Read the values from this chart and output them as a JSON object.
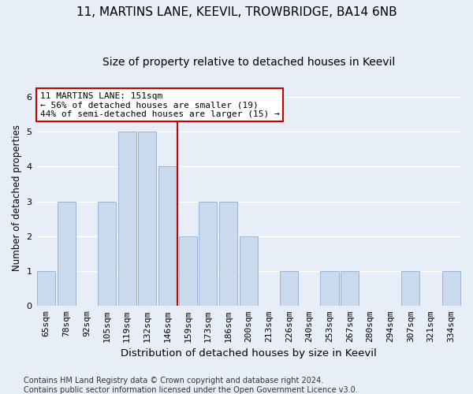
{
  "title": "11, MARTINS LANE, KEEVIL, TROWBRIDGE, BA14 6NB",
  "subtitle": "Size of property relative to detached houses in Keevil",
  "xlabel": "Distribution of detached houses by size in Keevil",
  "ylabel": "Number of detached properties",
  "categories": [
    "65sqm",
    "78sqm",
    "92sqm",
    "105sqm",
    "119sqm",
    "132sqm",
    "146sqm",
    "159sqm",
    "173sqm",
    "186sqm",
    "200sqm",
    "213sqm",
    "226sqm",
    "240sqm",
    "253sqm",
    "267sqm",
    "280sqm",
    "294sqm",
    "307sqm",
    "321sqm",
    "334sqm"
  ],
  "values": [
    1,
    3,
    0,
    3,
    5,
    5,
    4,
    2,
    3,
    3,
    2,
    0,
    1,
    0,
    1,
    1,
    0,
    0,
    1,
    0,
    1
  ],
  "bar_color": "#c9d9ee",
  "bar_edgecolor": "#9ab5d4",
  "vline_color": "#cc0000",
  "annotation_line1": "11 MARTINS LANE: 151sqm",
  "annotation_line2": "← 56% of detached houses are smaller (19)",
  "annotation_line3": "44% of semi-detached houses are larger (15) →",
  "annotation_box_color": "#ffffff",
  "annotation_box_edgecolor": "#cc0000",
  "ylim_max": 6.2,
  "yticks": [
    0,
    1,
    2,
    3,
    4,
    5,
    6
  ],
  "background_color": "#e8eef7",
  "grid_color": "#ffffff",
  "footer": "Contains HM Land Registry data © Crown copyright and database right 2024.\nContains public sector information licensed under the Open Government Licence v3.0.",
  "title_fontsize": 11,
  "subtitle_fontsize": 10,
  "xlabel_fontsize": 9.5,
  "ylabel_fontsize": 8.5,
  "tick_fontsize": 8,
  "footer_fontsize": 7,
  "annotation_fontsize": 8
}
